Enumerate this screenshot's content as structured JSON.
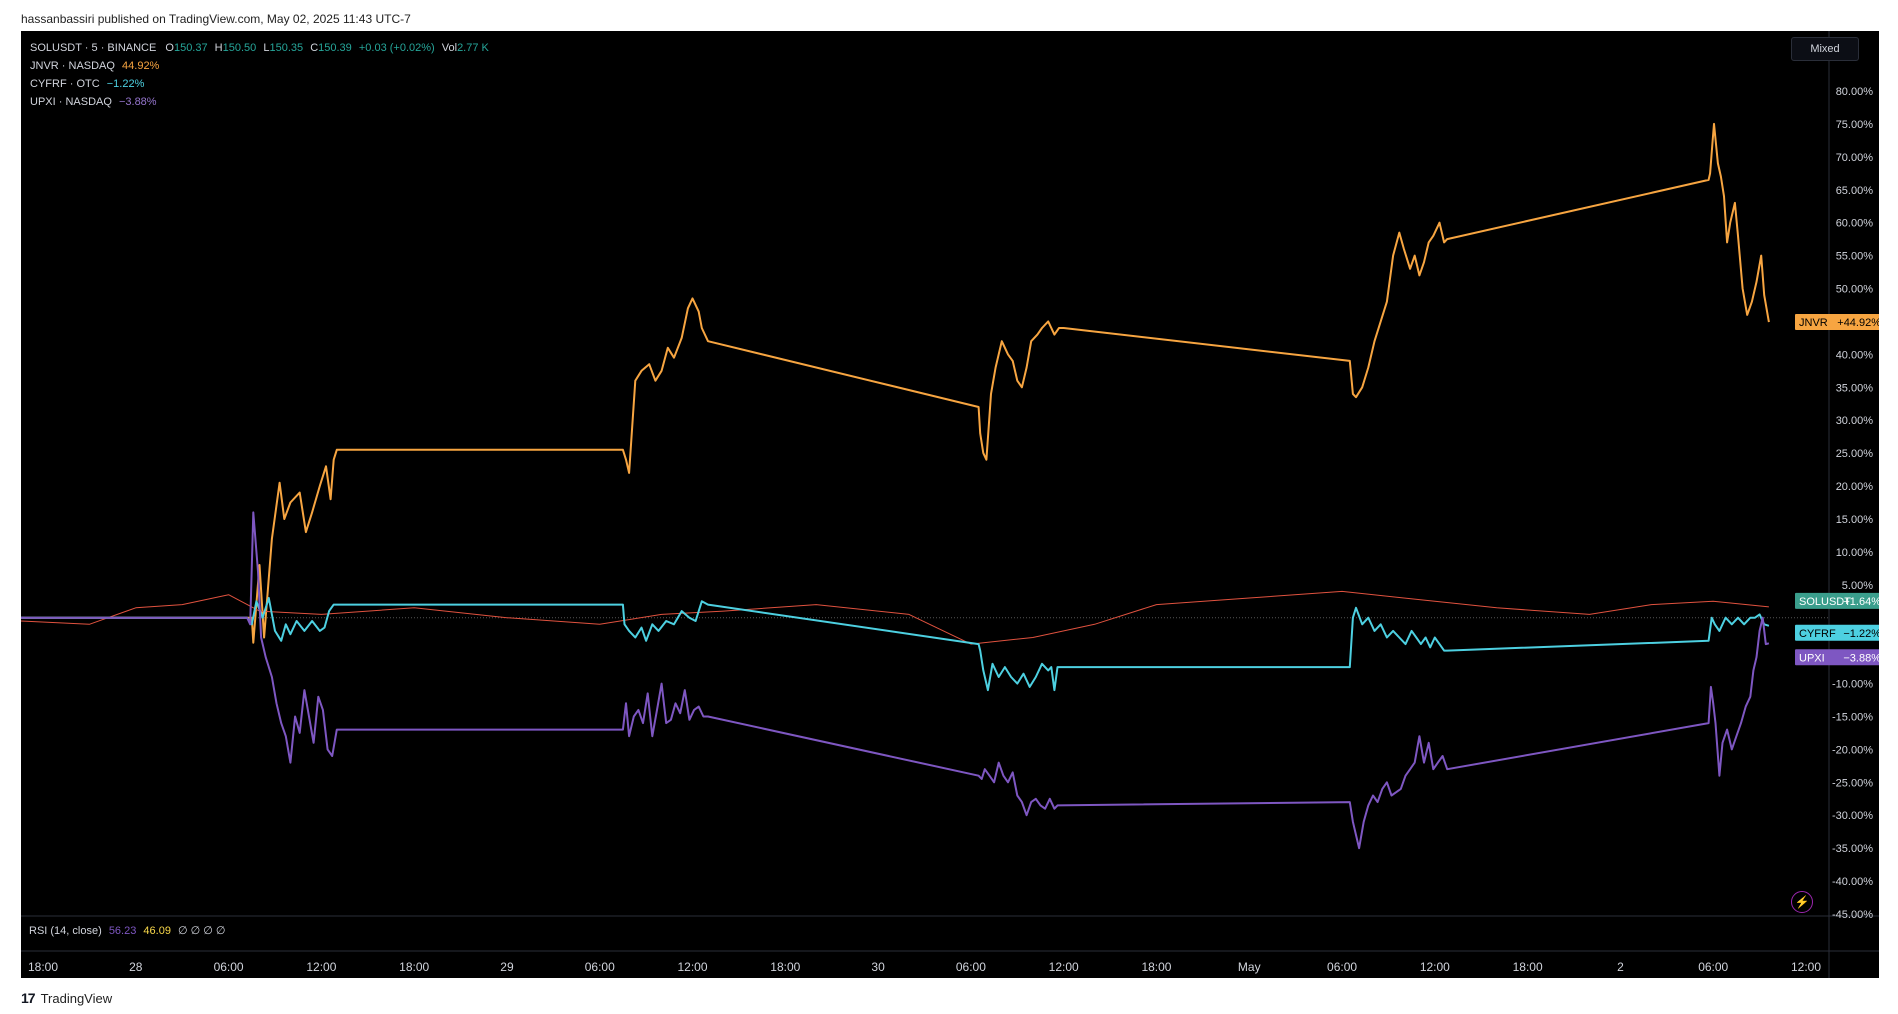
{
  "header": {
    "publisher": "hassanbassiri published on TradingView.com, May 02, 2025 11:43 UTC-7"
  },
  "legend": {
    "main": {
      "symbol": "SOLUSDT · 5 · BINANCE",
      "o_label": "O",
      "o": "150.37",
      "h_label": "H",
      "h": "150.50",
      "l_label": "L",
      "l": "150.35",
      "c_label": "C",
      "c": "150.39",
      "change": "+0.03 (+0.02%)",
      "vol_label": "Vol",
      "vol": "2.77 K"
    },
    "comparisons": [
      {
        "symbol": "JNVR · NASDAQ",
        "value": "44.92%",
        "color": "#f7a541"
      },
      {
        "symbol": "CYFRF · OTC",
        "value": "−1.22%",
        "color": "#4dd0e1"
      },
      {
        "symbol": "UPXI · NASDAQ",
        "value": "−3.88%",
        "color": "#7e57c2"
      }
    ]
  },
  "scale_mode": "Mixed",
  "rsi": {
    "label": "RSI (14, close)",
    "value1": "56.23",
    "value2": "46.09",
    "empty": "∅ ∅ ∅ ∅",
    "color1": "#7e57c2",
    "color2": "#f9d84a"
  },
  "footer": {
    "brand": "TradingView"
  },
  "chart_data": {
    "type": "line",
    "y_axis": {
      "unit": "%",
      "ylim": [
        -45,
        80
      ],
      "ticks": [
        80,
        75,
        70,
        65,
        60,
        55,
        50,
        45,
        40,
        35,
        30,
        25,
        20,
        15,
        10,
        5,
        -10,
        -15,
        -20,
        -25,
        -30,
        -35,
        -40,
        -45
      ]
    },
    "x_axis": {
      "ticks": [
        {
          "t": 0,
          "label": "18:00"
        },
        {
          "t": 6,
          "label": "28"
        },
        {
          "t": 12,
          "label": "06:00"
        },
        {
          "t": 18,
          "label": "12:00"
        },
        {
          "t": 24,
          "label": "18:00"
        },
        {
          "t": 30,
          "label": "29"
        },
        {
          "t": 36,
          "label": "06:00"
        },
        {
          "t": 42,
          "label": "12:00"
        },
        {
          "t": 48,
          "label": "18:00"
        },
        {
          "t": 54,
          "label": "30"
        },
        {
          "t": 60,
          "label": "06:00"
        },
        {
          "t": 66,
          "label": "12:00"
        },
        {
          "t": 72,
          "label": "18:00"
        },
        {
          "t": 78,
          "label": "May"
        },
        {
          "t": 84,
          "label": "06:00"
        },
        {
          "t": 90,
          "label": "12:00"
        },
        {
          "t": 96,
          "label": "18:00"
        },
        {
          "t": 102,
          "label": "2"
        },
        {
          "t": 108,
          "label": "06:00"
        },
        {
          "t": 114,
          "label": "12:00"
        }
      ]
    },
    "series": [
      {
        "name": "JNVR",
        "badge": "+44.92%",
        "color": "#f7a541",
        "x": [
          -1.5,
          13.5,
          13.6,
          14.0,
          14.3,
          14.8,
          15.3,
          15.6,
          16.0,
          16.6,
          17.0,
          17.4,
          17.9,
          18.3,
          18.6,
          18.8,
          19.0,
          37.5,
          37.7,
          37.9,
          38.3,
          38.7,
          39.2,
          39.6,
          40.0,
          40.4,
          40.8,
          41.3,
          41.7,
          42.0,
          42.4,
          42.6,
          43.0,
          60.5,
          60.6,
          60.8,
          61.0,
          61.3,
          61.6,
          62.0,
          62.4,
          62.7,
          63.0,
          63.3,
          63.6,
          63.9,
          64.3,
          64.6,
          65.0,
          65.4,
          65.7,
          66.0,
          84.5,
          84.7,
          84.9,
          85.3,
          85.7,
          86.1,
          86.5,
          86.9,
          87.3,
          87.7,
          88.0,
          88.4,
          88.7,
          89.0,
          89.3,
          89.6,
          89.9,
          90.3,
          90.6,
          90.8,
          107.7,
          107.8,
          107.95,
          108.05,
          108.3,
          108.5,
          108.7,
          108.9,
          109.1,
          109.4,
          109.6,
          109.9,
          110.2,
          110.5,
          110.8,
          111.1,
          111.3,
          111.6
        ],
        "values": [
          0,
          0,
          -3.8,
          8,
          -3,
          12,
          20.5,
          15,
          17.5,
          19,
          13,
          16,
          20,
          23,
          18,
          24,
          25.5,
          25.5,
          24,
          22,
          36,
          37.5,
          38.5,
          36,
          37.5,
          41,
          39.5,
          42.5,
          47,
          48.5,
          46.5,
          44,
          42,
          32,
          28,
          25,
          24,
          34,
          38,
          42,
          40,
          39,
          36,
          35,
          38,
          42,
          43,
          44,
          45,
          43,
          44,
          44,
          39,
          34,
          33.5,
          35,
          38,
          42,
          45,
          48,
          55,
          58.5,
          56,
          53,
          55,
          52,
          54,
          57,
          58,
          60,
          57,
          57.5,
          66.5,
          67.5,
          72,
          75,
          69,
          67,
          64,
          57,
          60,
          63,
          58,
          50,
          46,
          48,
          51,
          55,
          49,
          44.9
        ]
      },
      {
        "name": "SOLUSDT",
        "badge": "+1.64%",
        "color": "#e0523f",
        "x": [
          -1.5,
          3,
          6,
          9,
          12,
          14,
          18,
          24,
          30,
          36,
          40,
          44,
          50,
          56,
          60,
          64,
          68,
          72,
          78,
          84,
          88,
          94,
          100,
          104,
          108,
          111.6
        ],
        "values": [
          -0.5,
          -1,
          1.5,
          2,
          3.5,
          1,
          0.5,
          1.5,
          0,
          -1,
          0.5,
          1,
          2,
          0.5,
          -4,
          -3,
          -1,
          2,
          3,
          4,
          3,
          1.5,
          0.5,
          2,
          2.5,
          1.64
        ]
      },
      {
        "name": "CYFRF",
        "badge": "−1.22%",
        "color": "#4dd0e1",
        "x": [
          -1.5,
          13.2,
          13.5,
          13.8,
          14.2,
          14.6,
          15.0,
          15.4,
          15.7,
          16.0,
          16.4,
          16.9,
          17.4,
          17.9,
          18.2,
          18.5,
          18.8,
          19.0,
          37.5,
          37.6,
          37.9,
          38.3,
          38.7,
          39.0,
          39.4,
          39.8,
          40.3,
          40.8,
          41.3,
          41.8,
          42.2,
          42.6,
          43.0,
          60.5,
          60.6,
          60.8,
          61.1,
          61.4,
          61.8,
          62.2,
          62.6,
          63.0,
          63.4,
          63.8,
          64.2,
          64.6,
          65.0,
          65.2,
          65.4,
          65.6,
          84.5,
          84.7,
          84.9,
          85.3,
          85.7,
          86.1,
          86.5,
          86.9,
          87.3,
          87.7,
          88.1,
          88.5,
          88.8,
          89.1,
          89.4,
          89.7,
          90.0,
          90.3,
          90.6,
          90.8,
          107.7,
          107.9,
          108.1,
          108.4,
          108.8,
          109.2,
          109.6,
          110.0,
          110.4,
          110.7,
          111.0,
          111.3,
          111.6
        ],
        "values": [
          0,
          0,
          -1,
          2.5,
          0,
          3,
          -2,
          -3.5,
          -1,
          -2.5,
          -0.5,
          -2,
          -0.5,
          -2,
          -1.5,
          1,
          2,
          2,
          2,
          -1,
          -2,
          -3,
          -1.5,
          -3.5,
          -1,
          -2,
          -0.5,
          -1,
          1,
          0,
          -0.5,
          2.5,
          2,
          -4,
          -5,
          -8,
          -11,
          -7,
          -9,
          -7.5,
          -9,
          -10,
          -8.5,
          -10.5,
          -9,
          -7,
          -8,
          -7.5,
          -11,
          -7.5,
          -7.5,
          0,
          1.5,
          -1,
          0,
          -2,
          -1,
          -3,
          -2,
          -3,
          -4,
          -2,
          -3,
          -4,
          -3,
          -4.5,
          -3,
          -4,
          -5,
          -5,
          -3.5,
          0,
          -1,
          -2,
          0,
          -1,
          0,
          -1,
          0,
          0,
          0.5,
          -1,
          -1.22
        ]
      },
      {
        "name": "UPXI",
        "badge": "−3.88%",
        "color": "#7e57c2",
        "x": [
          -1.5,
          13.2,
          13.4,
          13.6,
          13.9,
          14.1,
          14.4,
          14.8,
          15.1,
          15.4,
          15.7,
          16.0,
          16.3,
          16.6,
          16.9,
          17.2,
          17.5,
          17.8,
          18.1,
          18.4,
          18.7,
          19.0,
          37.5,
          37.7,
          37.9,
          38.2,
          38.5,
          38.8,
          39.1,
          39.4,
          39.7,
          40.0,
          40.3,
          40.6,
          40.9,
          41.2,
          41.5,
          41.8,
          42.1,
          42.4,
          42.7,
          43.0,
          60.5,
          60.7,
          60.9,
          61.2,
          61.5,
          61.8,
          62.1,
          62.4,
          62.7,
          63.0,
          63.3,
          63.6,
          63.9,
          64.2,
          64.5,
          64.8,
          65.1,
          65.4,
          65.6,
          84.5,
          84.7,
          84.9,
          85.1,
          85.4,
          85.7,
          86.0,
          86.3,
          86.6,
          86.9,
          87.2,
          87.5,
          87.8,
          88.1,
          88.4,
          88.7,
          89.0,
          89.3,
          89.6,
          89.9,
          90.2,
          90.5,
          90.8,
          107.7,
          107.85,
          108.0,
          108.15,
          108.4,
          108.6,
          108.9,
          109.2,
          109.5,
          109.8,
          110.1,
          110.4,
          110.6,
          110.8,
          111.0,
          111.2,
          111.4,
          111.6
        ],
        "values": [
          0,
          0,
          -1,
          16,
          7,
          -3,
          -6,
          -9,
          -13,
          -16,
          -18,
          -22,
          -15,
          -17.5,
          -11,
          -15,
          -19,
          -12,
          -14,
          -20,
          -21,
          -17,
          -17,
          -13,
          -18,
          -15,
          -14,
          -16,
          -11.5,
          -18,
          -14,
          -10,
          -16,
          -15.5,
          -13,
          -14.5,
          -11,
          -15.5,
          -14,
          -13.5,
          -15,
          -15,
          -24,
          -24.5,
          -23,
          -24,
          -25,
          -22,
          -24,
          -25,
          -23.5,
          -27,
          -28,
          -30,
          -28,
          -27.5,
          -28.5,
          -29,
          -27.5,
          -29,
          -28.5,
          -28,
          -31,
          -33,
          -35,
          -31,
          -28.5,
          -27,
          -28,
          -26,
          -25,
          -27,
          -26.5,
          -26,
          -24,
          -23,
          -22,
          -18,
          -22,
          -19,
          -23,
          -22,
          -21,
          -23,
          -16,
          -10.5,
          -13,
          -16,
          -24,
          -19,
          -17,
          -20,
          -18,
          -16,
          -13.5,
          -12,
          -8,
          -6,
          -2,
          0,
          -4,
          -3.88
        ]
      },
      {
        "name": "RSI",
        "color": "#7e57c2",
        "x": [
          -1.5,
          111.6
        ],
        "values": [
          56.23,
          56.23
        ]
      }
    ],
    "legend_placement": "top-left",
    "grid": false,
    "baseline_pct": 0
  }
}
